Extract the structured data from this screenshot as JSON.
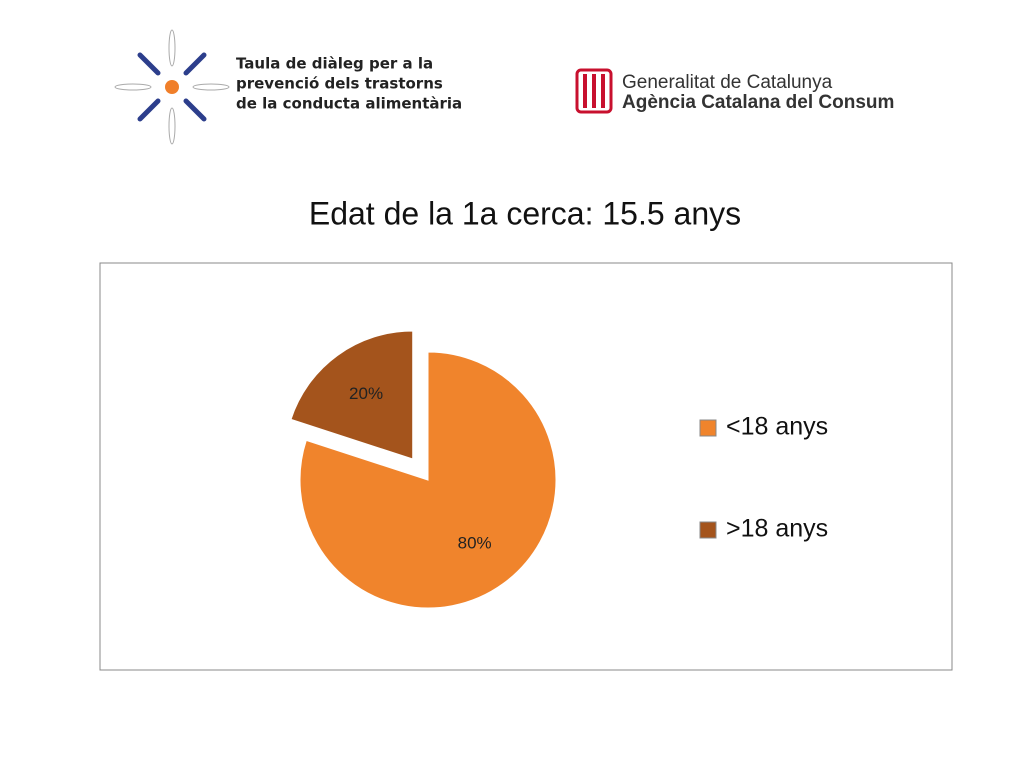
{
  "header": {
    "left_logo": [
      "Taula de diàleg per a la",
      "prevenció dels trastorns",
      "de la conducta alimentària"
    ],
    "right_logo": [
      "Generalitat de Catalunya",
      "Agència Catalana del Consum"
    ]
  },
  "chart_data": {
    "type": "pie",
    "title": "Edat de la 1a cerca:  15.5 anys",
    "categories": [
      "<18 anys",
      ">18 anys"
    ],
    "values": [
      80,
      20
    ],
    "value_labels": [
      "80%",
      "20%"
    ],
    "colors": [
      "#f0842c",
      "#a4541c"
    ],
    "legend": "right"
  }
}
